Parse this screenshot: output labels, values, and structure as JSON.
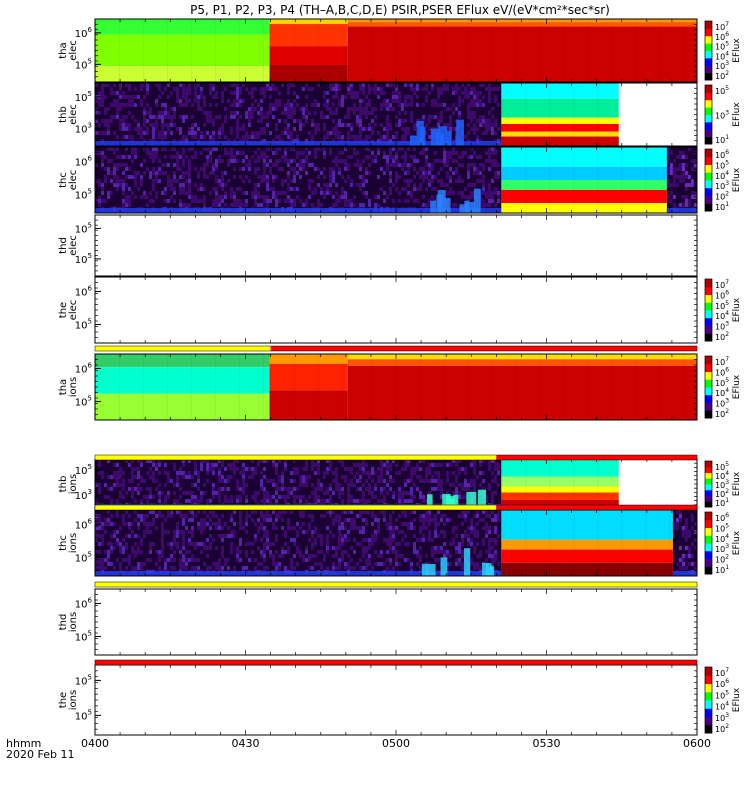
{
  "title": "P5, P1, P2, P3, P4 (TH–A,B,C,D,E) PSIR,PSER EFlux eV/(eV*cm²*sec*sr)",
  "colorbar_label": "EFlux",
  "chart_data": {
    "type": "heatmap",
    "time_axis": {
      "range": [
        "04:00",
        "06:00"
      ],
      "ticks": [
        "0400",
        "0430",
        "0500",
        "0530",
        "0600"
      ],
      "label_line1": "hhmm",
      "label_line2": "2020 Feb 11"
    },
    "panels": [
      {
        "id": "tha_elec",
        "label_top": "tha",
        "label_bottom": "elec",
        "yticks": [
          {
            "base": "10",
            "exp": "6",
            "value": 1000000
          },
          {
            "base": "10",
            "exp": "5",
            "value": 100000
          }
        ],
        "has_data": true,
        "colorbar": {
          "ticks": [
            {
              "base": "10",
              "exp": "7"
            },
            {
              "base": "10",
              "exp": "6"
            },
            {
              "base": "10",
              "exp": "5"
            },
            {
              "base": "10",
              "exp": "4"
            },
            {
              "base": "10",
              "exp": "3"
            },
            {
              "base": "10",
              "exp": "2"
            }
          ]
        }
      },
      {
        "id": "thb_elec",
        "label_top": "thb",
        "label_bottom": "elec",
        "yticks": [
          {
            "base": "10",
            "exp": "5",
            "value": 100000
          },
          {
            "base": "10",
            "exp": "3",
            "value": 1000
          }
        ],
        "has_data": true,
        "colorbar": {
          "ticks": [
            {
              "base": "10",
              "exp": "5"
            },
            {
              "base": "10",
              "exp": "3"
            },
            {
              "base": "10",
              "exp": "1"
            }
          ]
        }
      },
      {
        "id": "thc_elec",
        "label_top": "thc",
        "label_bottom": "elec",
        "yticks": [
          {
            "base": "10",
            "exp": "6",
            "value": 1000000
          },
          {
            "base": "10",
            "exp": "5",
            "value": 100000
          }
        ],
        "has_data": true,
        "colorbar": {
          "ticks": [
            {
              "base": "10",
              "exp": "6"
            },
            {
              "base": "10",
              "exp": "5"
            },
            {
              "base": "10",
              "exp": "4"
            },
            {
              "base": "10",
              "exp": "3"
            },
            {
              "base": "10",
              "exp": "2"
            },
            {
              "base": "10",
              "exp": "1"
            }
          ]
        }
      },
      {
        "id": "thd_elec",
        "label_top": "thd",
        "label_bottom": "elec",
        "yticks": [
          {
            "base": "10",
            "exp": "5",
            "value": 100000
          },
          {
            "base": "10",
            "exp": "5",
            "value": 100000
          }
        ],
        "has_data": false
      },
      {
        "id": "the_elec",
        "label_top": "the",
        "label_bottom": "elec",
        "yticks": [
          {
            "base": "10",
            "exp": "6",
            "value": 1000000
          },
          {
            "base": "10",
            "exp": "5",
            "value": 100000
          }
        ],
        "has_data": false,
        "colorbar": {
          "ticks": [
            {
              "base": "10",
              "exp": "7"
            },
            {
              "base": "10",
              "exp": "6"
            },
            {
              "base": "10",
              "exp": "5"
            },
            {
              "base": "10",
              "exp": "4"
            },
            {
              "base": "10",
              "exp": "3"
            },
            {
              "base": "10",
              "exp": "2"
            }
          ]
        }
      },
      {
        "id": "tha_ions",
        "label_top": "tha",
        "label_bottom": "ions",
        "yticks": [
          {
            "base": "10",
            "exp": "6",
            "value": 1000000
          },
          {
            "base": "10",
            "exp": "5",
            "value": 100000
          }
        ],
        "has_data": true,
        "colorbar": {
          "ticks": [
            {
              "base": "10",
              "exp": "7"
            },
            {
              "base": "10",
              "exp": "6"
            },
            {
              "base": "10",
              "exp": "5"
            },
            {
              "base": "10",
              "exp": "4"
            },
            {
              "base": "10",
              "exp": "3"
            },
            {
              "base": "10",
              "exp": "2"
            }
          ]
        }
      },
      {
        "id": "thb_ions",
        "label_top": "thb",
        "label_bottom": "ions",
        "yticks": [
          {
            "base": "10",
            "exp": "5",
            "value": 100000
          },
          {
            "base": "10",
            "exp": "3",
            "value": 1000
          }
        ],
        "has_data": true,
        "colorbar": {
          "ticks": [
            {
              "base": "10",
              "exp": "5"
            },
            {
              "base": "10",
              "exp": "4"
            },
            {
              "base": "10",
              "exp": "3"
            },
            {
              "base": "10",
              "exp": "2"
            },
            {
              "base": "10",
              "exp": "1"
            }
          ]
        }
      },
      {
        "id": "thc_ions",
        "label_top": "thc",
        "label_bottom": "ions",
        "yticks": [
          {
            "base": "10",
            "exp": "6",
            "value": 1000000
          },
          {
            "base": "10",
            "exp": "5",
            "value": 100000
          }
        ],
        "has_data": true,
        "colorbar": {
          "ticks": [
            {
              "base": "10",
              "exp": "6"
            },
            {
              "base": "10",
              "exp": "5"
            },
            {
              "base": "10",
              "exp": "4"
            },
            {
              "base": "10",
              "exp": "3"
            },
            {
              "base": "10",
              "exp": "2"
            },
            {
              "base": "10",
              "exp": "1"
            }
          ]
        }
      },
      {
        "id": "thd_ions",
        "label_top": "thd",
        "label_bottom": "ions",
        "yticks": [
          {
            "base": "10",
            "exp": "6",
            "value": 1000000
          },
          {
            "base": "10",
            "exp": "5",
            "value": 100000
          }
        ],
        "has_data": false
      },
      {
        "id": "the_ions",
        "label_top": "the",
        "label_bottom": "ions",
        "yticks": [
          {
            "base": "10",
            "exp": "5",
            "value": 100000
          },
          {
            "base": "10",
            "exp": "5",
            "value": 100000
          }
        ],
        "has_data": false,
        "colorbar": {
          "ticks": [
            {
              "base": "10",
              "exp": "7"
            },
            {
              "base": "10",
              "exp": "6"
            },
            {
              "base": "10",
              "exp": "5"
            },
            {
              "base": "10",
              "exp": "4"
            },
            {
              "base": "10",
              "exp": "3"
            },
            {
              "base": "10",
              "exp": "2"
            }
          ]
        }
      }
    ],
    "mode_bars": [
      {
        "id": "bar_tha_elec",
        "segments": [
          {
            "from": "04:00",
            "to": "04:35",
            "color": "#ffff00"
          },
          {
            "from": "04:35",
            "to": "06:00",
            "color": "#ff0000"
          }
        ]
      },
      {
        "id": "bar_thb_ions",
        "segments": [
          {
            "from": "04:00",
            "to": "05:20",
            "color": "#ffff00"
          },
          {
            "from": "05:20",
            "to": "06:00",
            "color": "#ff0000"
          }
        ]
      },
      {
        "id": "bar_thc_ions",
        "segments": [
          {
            "from": "04:00",
            "to": "05:20",
            "color": "#ffff00"
          },
          {
            "from": "05:20",
            "to": "06:00",
            "color": "#ff0000"
          }
        ]
      },
      {
        "id": "bar_thd_ions",
        "segments": [
          {
            "from": "04:00",
            "to": "06:00",
            "color": "#ffff00"
          }
        ]
      },
      {
        "id": "bar_the_ions",
        "segments": [
          {
            "from": "04:00",
            "to": "06:00",
            "color": "#ff0000"
          }
        ]
      }
    ],
    "colormap": [
      "#000000",
      "#4b0082",
      "#0000ff",
      "#00ffff",
      "#00ff00",
      "#ffff00",
      "#ff0000",
      "#b00000"
    ]
  }
}
